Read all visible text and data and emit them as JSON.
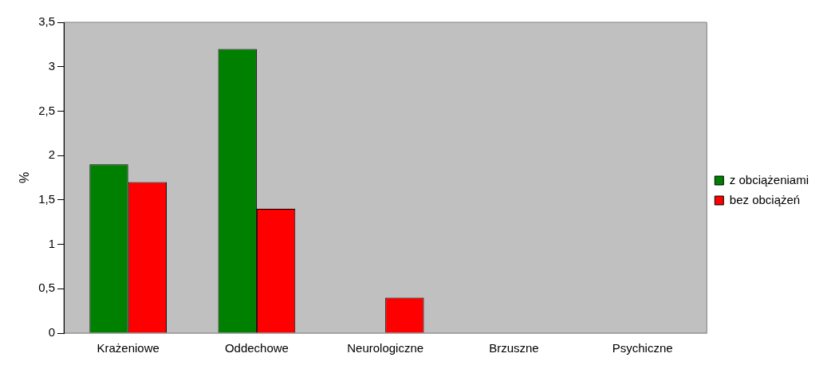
{
  "chart_data": {
    "type": "bar",
    "ylabel": "%",
    "categories": [
      "Krażeniowe",
      "Oddechowe",
      "Neurologiczne",
      "Brzuszne",
      "Psychiczne"
    ],
    "series": [
      {
        "name": "z obciążeniami",
        "color": "#008000",
        "values": [
          1.9,
          3.2,
          0,
          0,
          0
        ]
      },
      {
        "name": "bez obciążeń",
        "color": "#ff0000",
        "values": [
          1.7,
          1.4,
          0.4,
          0,
          0
        ]
      }
    ],
    "ylim": [
      0,
      3.5
    ],
    "yticks": [
      {
        "value": 0,
        "label": "0"
      },
      {
        "value": 0.5,
        "label": "0,5"
      },
      {
        "value": 1,
        "label": "1"
      },
      {
        "value": 1.5,
        "label": "1,5"
      },
      {
        "value": 2,
        "label": "2"
      },
      {
        "value": 2.5,
        "label": "2,5"
      },
      {
        "value": 3,
        "label": "3"
      },
      {
        "value": 3.5,
        "label": "3,5"
      }
    ],
    "grid": false,
    "legend": "right"
  }
}
